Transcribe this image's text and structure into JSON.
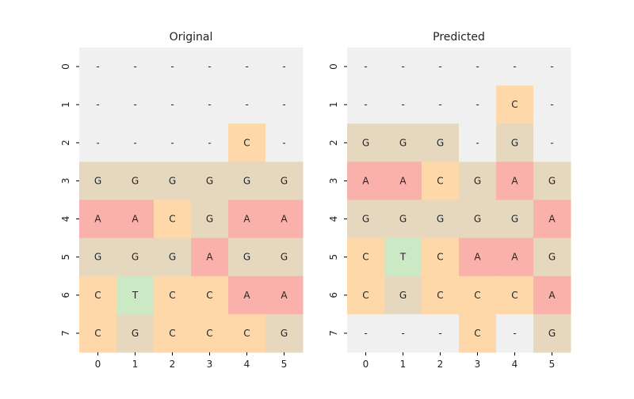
{
  "chart_data": [
    {
      "type": "heatmap",
      "title": "Original",
      "x_ticks": [
        "0",
        "1",
        "2",
        "3",
        "4",
        "5"
      ],
      "y_ticks": [
        "0",
        "1",
        "2",
        "3",
        "4",
        "5",
        "6",
        "7"
      ],
      "cells": [
        [
          "-",
          "-",
          "-",
          "-",
          "-",
          "-"
        ],
        [
          "-",
          "-",
          "-",
          "-",
          "-",
          "-"
        ],
        [
          "-",
          "-",
          "-",
          "-",
          "C",
          "-"
        ],
        [
          "G",
          "G",
          "G",
          "G",
          "G",
          "G"
        ],
        [
          "A",
          "A",
          "C",
          "G",
          "A",
          "A"
        ],
        [
          "G",
          "G",
          "G",
          "A",
          "G",
          "G"
        ],
        [
          "C",
          "T",
          "C",
          "C",
          "A",
          "A"
        ],
        [
          "C",
          "G",
          "C",
          "C",
          "C",
          "G"
        ]
      ]
    },
    {
      "type": "heatmap",
      "title": "Predicted",
      "x_ticks": [
        "0",
        "1",
        "2",
        "3",
        "4",
        "5"
      ],
      "y_ticks": [
        "0",
        "1",
        "2",
        "3",
        "4",
        "5",
        "6",
        "7"
      ],
      "cells": [
        [
          "-",
          "-",
          "-",
          "-",
          "-",
          "-"
        ],
        [
          "-",
          "-",
          "-",
          "-",
          "C",
          "-"
        ],
        [
          "G",
          "G",
          "G",
          "-",
          "G",
          "-"
        ],
        [
          "A",
          "A",
          "C",
          "G",
          "A",
          "G"
        ],
        [
          "G",
          "G",
          "G",
          "G",
          "G",
          "A"
        ],
        [
          "C",
          "T",
          "C",
          "A",
          "A",
          "G"
        ],
        [
          "C",
          "G",
          "C",
          "C",
          "C",
          "A"
        ],
        [
          "-",
          "-",
          "-",
          "C",
          "-",
          "G"
        ]
      ]
    }
  ],
  "colors": {
    "-": "#f0f0f0",
    "A": "#fab1ab",
    "C": "#fed8a8",
    "G": "#e5d8be",
    "T": "#cce9c5"
  }
}
